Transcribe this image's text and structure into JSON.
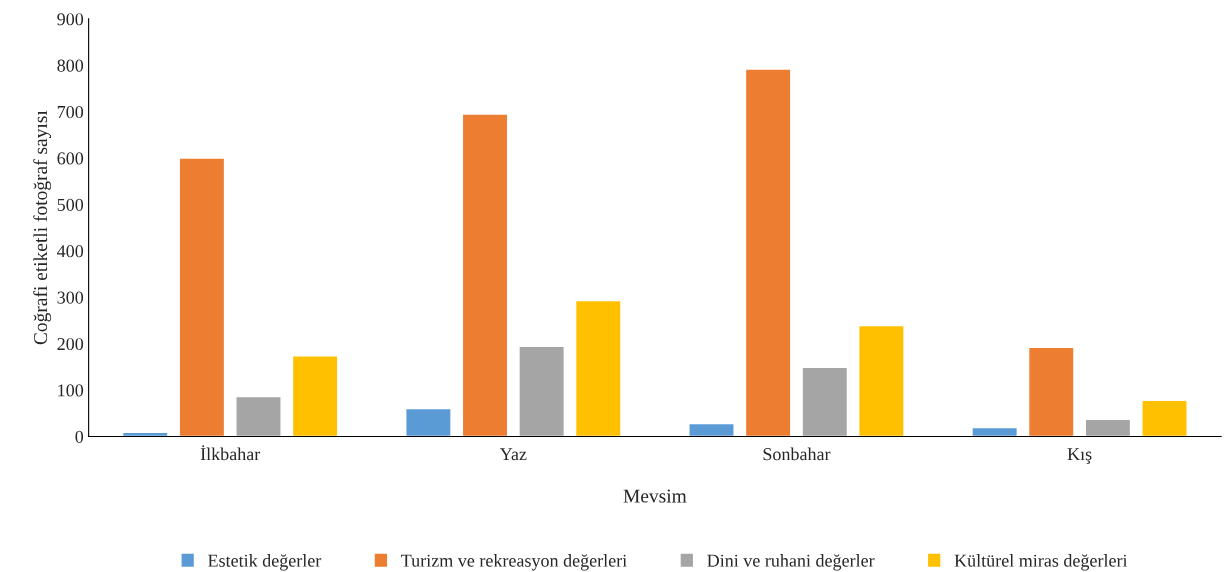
{
  "chart_data": {
    "type": "bar",
    "xlabel": "Mevsim",
    "ylabel": "Coğrafi etiketli fotoğraf sayısı",
    "categories": [
      "İlkbahar",
      "Yaz",
      "Sonbahar",
      "Kış"
    ],
    "series": [
      {
        "name": "Estetik değerler",
        "color": "#5b9bd5",
        "values": [
          9,
          60,
          28,
          19
        ]
      },
      {
        "name": "Turizm ve rekreasyon değerleri",
        "color": "#ed7d31",
        "values": [
          600,
          695,
          792,
          192
        ]
      },
      {
        "name": "Dini ve ruhani değerler",
        "color": "#a5a5a5",
        "values": [
          86,
          194,
          149,
          37
        ]
      },
      {
        "name": "Kültürel miras değerleri",
        "color": "#ffc000",
        "values": [
          174,
          293,
          239,
          78
        ]
      }
    ],
    "ylim": [
      0,
      900
    ],
    "yticks": [
      0,
      100,
      200,
      300,
      400,
      500,
      600,
      700,
      800,
      900
    ],
    "grid": false,
    "legend": "bottom"
  }
}
